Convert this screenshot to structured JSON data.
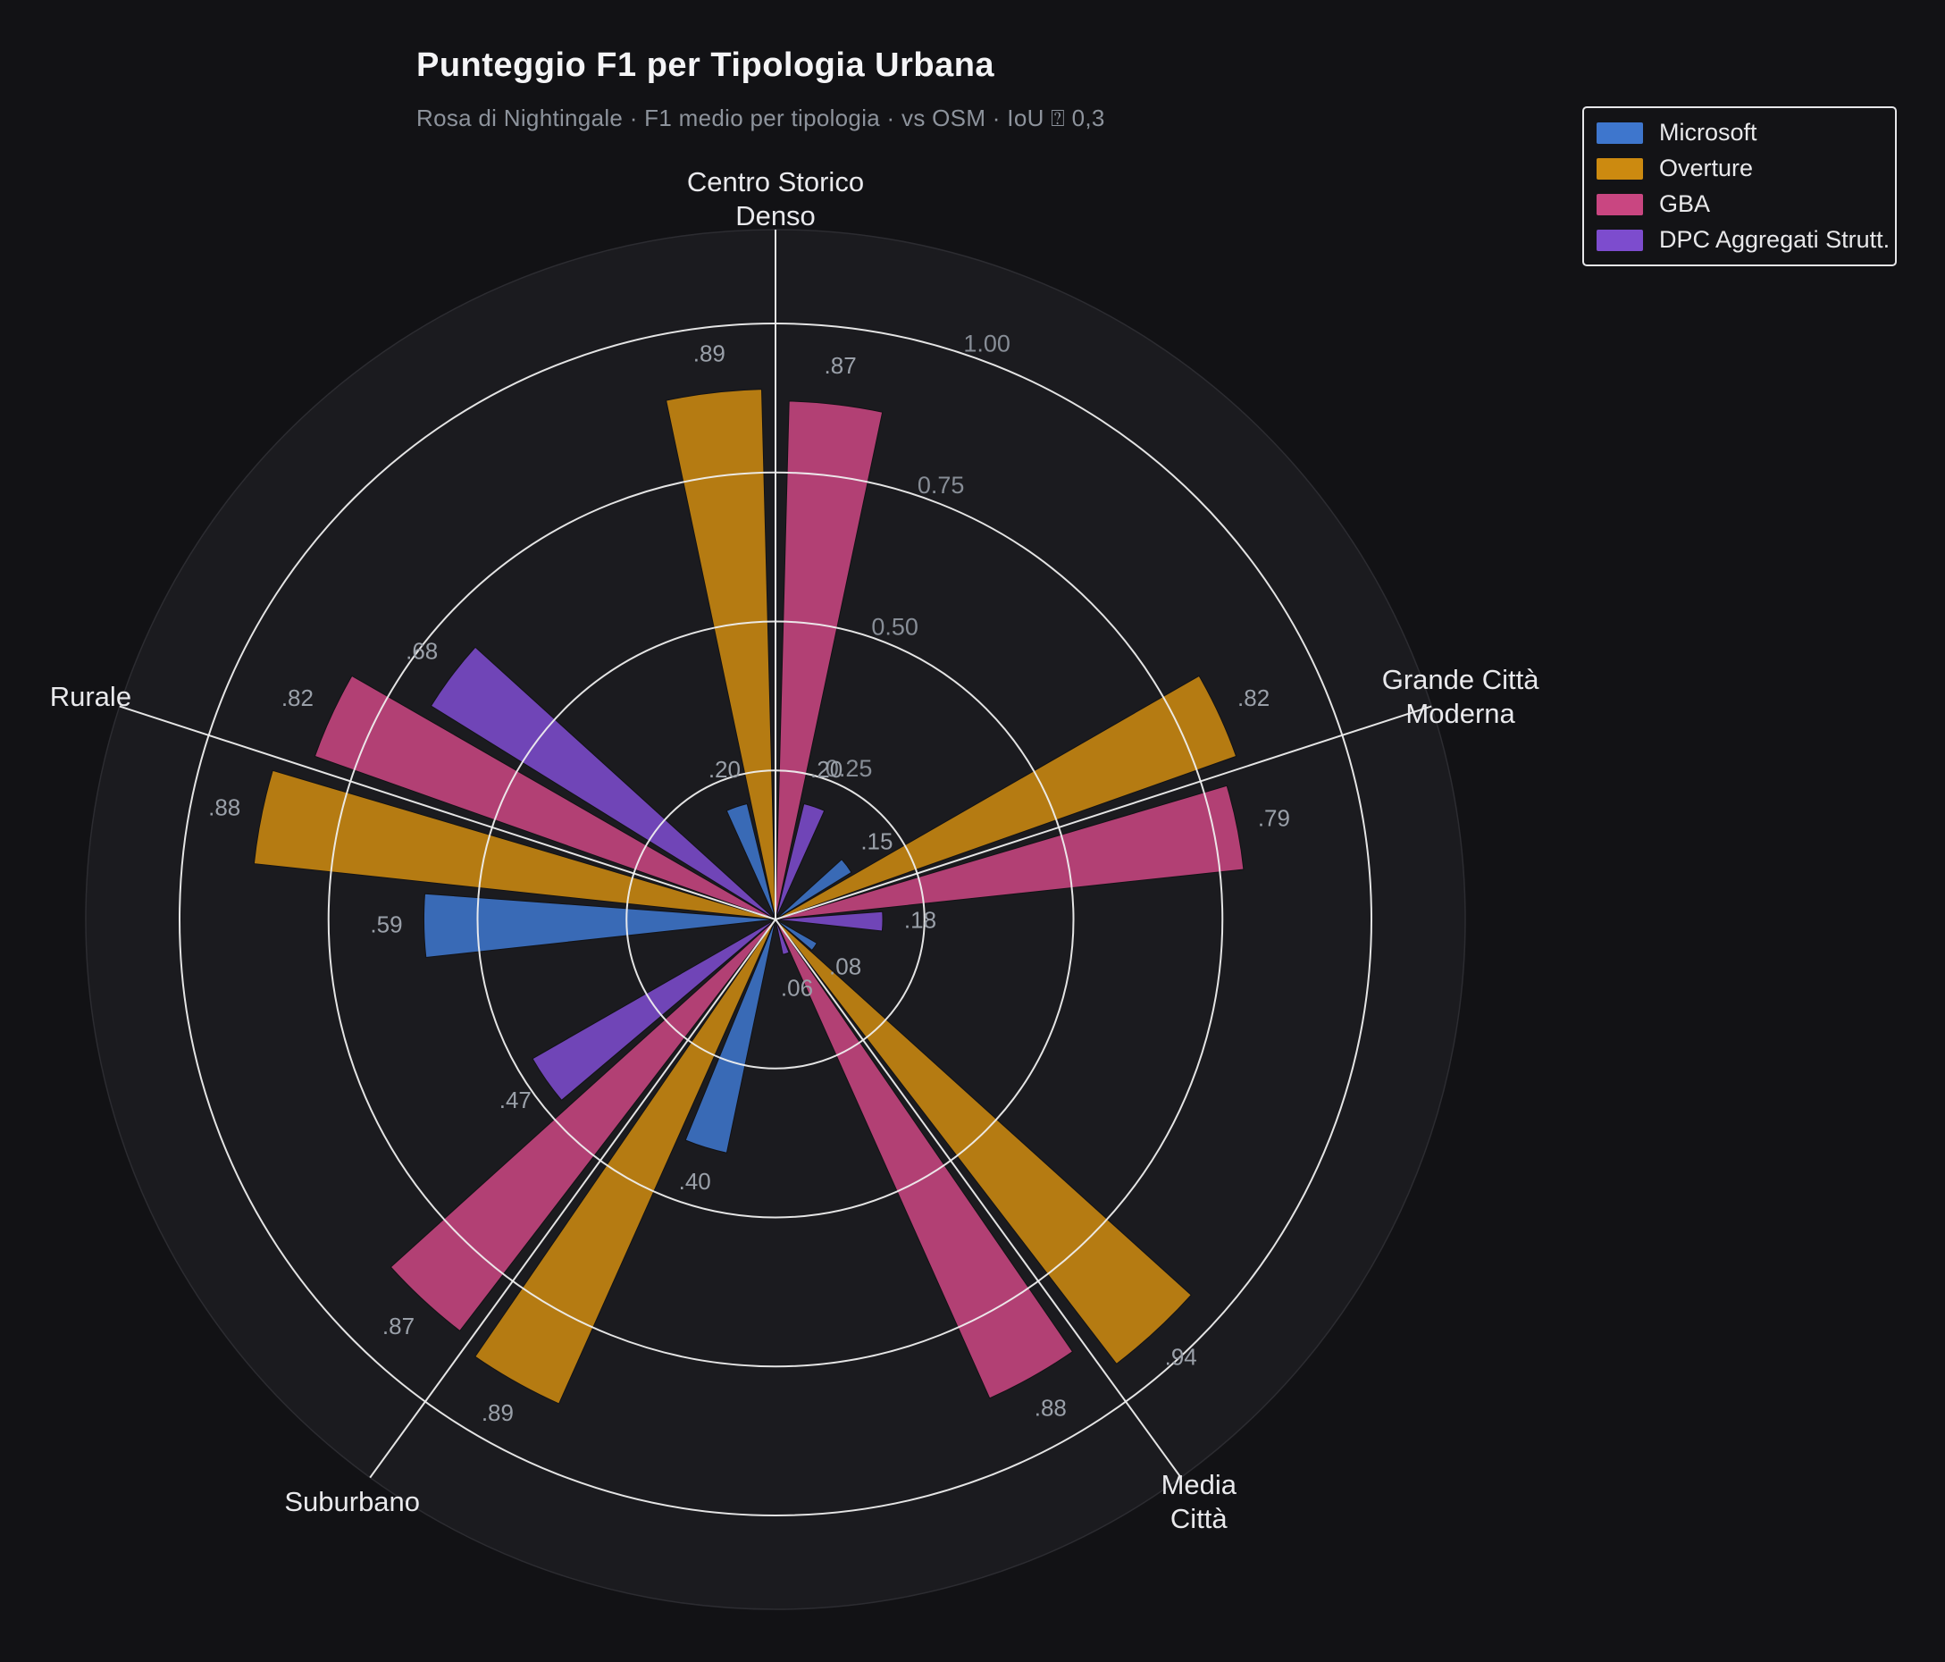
{
  "title": "Punteggio F1 per Tipologia Urbana",
  "subtitle": "Rosa di Nightingale · F1 medio per tipologia · vs OSM · IoU ⍰ 0,3",
  "legend": {
    "items": [
      {
        "label": "Microsoft",
        "color": "#3e76cd"
      },
      {
        "label": "Overture",
        "color": "#cc8a10"
      },
      {
        "label": "GBA",
        "color": "#c94681"
      },
      {
        "label": "DPC Aggregati Strutt.",
        "color": "#7d4cce"
      }
    ]
  },
  "chart_data": {
    "type": "bar",
    "subtype": "nightingale-rose-polar",
    "categories": [
      "Centro Storico Denso",
      "Grande Città Moderna",
      "Media Città",
      "Suburbano",
      "Rurale"
    ],
    "category_label_lines": [
      [
        "Centro Storico",
        "Denso"
      ],
      [
        "Grande Città",
        "Moderna"
      ],
      [
        "Media",
        "Città"
      ],
      [
        "Suburbano"
      ],
      [
        "Rurale"
      ]
    ],
    "series": [
      {
        "name": "Microsoft",
        "color": "#3e76cd",
        "values": [
          0.2,
          0.15,
          0.08,
          0.4,
          0.59
        ],
        "value_labels": [
          ".20",
          ".15",
          ".08",
          ".40",
          ".59"
        ]
      },
      {
        "name": "Overture",
        "color": "#cc8a10",
        "values": [
          0.89,
          0.82,
          0.94,
          0.89,
          0.88
        ],
        "value_labels": [
          ".89",
          ".82",
          ".94",
          ".89",
          ".88"
        ]
      },
      {
        "name": "GBA",
        "color": "#c94681",
        "values": [
          0.87,
          0.79,
          0.88,
          0.87,
          0.82
        ],
        "value_labels": [
          ".87",
          ".79",
          ".88",
          ".87",
          ".82"
        ]
      },
      {
        "name": "DPC Aggregati Strutt.",
        "color": "#7d4cce",
        "values": [
          0.2,
          0.18,
          0.06,
          0.47,
          0.68
        ],
        "value_labels": [
          ".20",
          ".18",
          ".06",
          ".47",
          ".68"
        ]
      }
    ],
    "radial_ticks": [
      0.25,
      0.5,
      0.75,
      1.0
    ],
    "radial_tick_labels": [
      "0.25",
      "0.50",
      "0.75",
      "1.00"
    ],
    "rlim": [
      0,
      1.0
    ],
    "grid": "on",
    "legend_position": "top-right",
    "colors": {
      "page_bg": "#121215",
      "plot_disk_bg": "#1b1b1f",
      "grid_line": "#efefef",
      "value_label": "#9aa0a9",
      "tick_label": "#878d96",
      "category_label": "#e9e9ec"
    }
  }
}
